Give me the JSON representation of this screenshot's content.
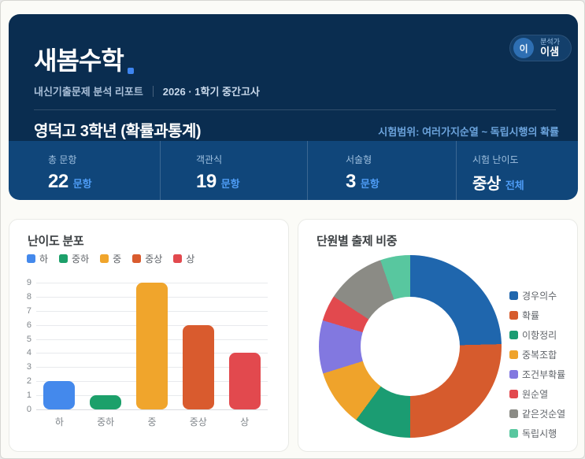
{
  "header": {
    "brand": "새봄수학",
    "analyst": {
      "avatar_initial": "이",
      "role": "분석가",
      "name": "이샘"
    },
    "report_type": "내신기출문제 분석 리포트",
    "term": "2026 · 1학기 중간고사",
    "exam_title": "영덕고 3학년 (확률과통계)",
    "exam_range": "시험범위: 여러가지순열 ~ 독립시행의 확률"
  },
  "stats": {
    "items": [
      {
        "label": "총 문항",
        "value": "22",
        "suffix": "문항",
        "value_is_text": false
      },
      {
        "label": "객관식",
        "value": "19",
        "suffix": "문항",
        "value_is_text": false
      },
      {
        "label": "서술형",
        "value": "3",
        "suffix": "문항",
        "value_is_text": false
      },
      {
        "label": "시험 난이도",
        "value": "중상",
        "suffix": "전체",
        "value_is_text": true
      }
    ]
  },
  "cards": {
    "difficulty_title": "난이도 분포",
    "units_title": "단원별 출제 비중"
  },
  "colors": {
    "header_bg": "#0a2d50",
    "stats_bg": "#10467a",
    "accent_blue": "#4e9cf5",
    "brand_dot": "#3e85f0",
    "range_text": "#6ba3dc"
  },
  "chart_data": [
    {
      "type": "bar",
      "title": "난이도 분포",
      "categories": [
        "하",
        "중하",
        "중",
        "중상",
        "상"
      ],
      "values": [
        2,
        1,
        9,
        6,
        4
      ],
      "colors": [
        "#4489ec",
        "#1ca06a",
        "#f0a52c",
        "#d95b2e",
        "#e2494e"
      ],
      "xlabel": "",
      "ylabel": "",
      "ylim": [
        0,
        9
      ],
      "ytick_step": 1,
      "grid": true,
      "legend_position": "top"
    },
    {
      "type": "pie",
      "subtype": "donut",
      "title": "단원별 출제 비중",
      "labels": [
        "경우의수",
        "확률",
        "이항정리",
        "중복조합",
        "조건부확률",
        "원순열",
        "같은것순열",
        "독립시행"
      ],
      "values": [
        24.6,
        25.4,
        10.1,
        10.1,
        9.4,
        4.6,
        10.5,
        5.3
      ],
      "unit": "percent",
      "colors": [
        "#1f66ad",
        "#d65b2d",
        "#1b9c72",
        "#efa32b",
        "#8278e0",
        "#e2494e",
        "#8b8b85",
        "#58c79f"
      ],
      "start_angle_deg": 0,
      "direction": "clockwise",
      "legend_position": "right"
    }
  ]
}
